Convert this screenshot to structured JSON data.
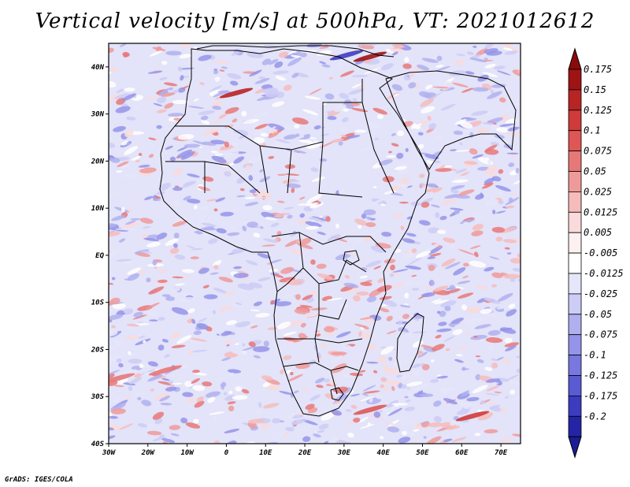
{
  "title": "Vertical velocity [m/s] at 500hPa, VT: 2021012612",
  "credit": "GrADS: IGES/COLA",
  "map": {
    "lon_range": [
      -30,
      75
    ],
    "lat_range": [
      -40,
      45
    ],
    "lon_ticks": [
      {
        "value": -30,
        "label": "30W"
      },
      {
        "value": -20,
        "label": "20W"
      },
      {
        "value": -10,
        "label": "10W"
      },
      {
        "value": 0,
        "label": "0"
      },
      {
        "value": 10,
        "label": "10E"
      },
      {
        "value": 20,
        "label": "20E"
      },
      {
        "value": 30,
        "label": "30E"
      },
      {
        "value": 40,
        "label": "40E"
      },
      {
        "value": 50,
        "label": "50E"
      },
      {
        "value": 60,
        "label": "60E"
      },
      {
        "value": 70,
        "label": "70E"
      }
    ],
    "lat_ticks": [
      {
        "value": 40,
        "label": "40N"
      },
      {
        "value": 30,
        "label": "30N"
      },
      {
        "value": 20,
        "label": "20N"
      },
      {
        "value": 10,
        "label": "10N"
      },
      {
        "value": 0,
        "label": "EQ"
      },
      {
        "value": -10,
        "label": "10S"
      },
      {
        "value": -20,
        "label": "20S"
      },
      {
        "value": -30,
        "label": "30S"
      },
      {
        "value": -40,
        "label": "40S"
      }
    ]
  },
  "colorbar": {
    "levels": [
      {
        "label": "0.175",
        "color": "#9e1414"
      },
      {
        "label": "0.15",
        "color": "#b82424"
      },
      {
        "label": "0.125",
        "color": "#cf3a3a"
      },
      {
        "label": "0.1",
        "color": "#de5656"
      },
      {
        "label": "0.075",
        "color": "#e77878"
      },
      {
        "label": "0.05",
        "color": "#ef9a9a"
      },
      {
        "label": "0.025",
        "color": "#f6bcbc"
      },
      {
        "label": "0.0125",
        "color": "#fadada"
      },
      {
        "label": "0.005",
        "color": "#fdf0f0"
      },
      {
        "label": "-0.005",
        "color": "#ffffff"
      },
      {
        "label": "-0.0125",
        "color": "#e6e6fb"
      },
      {
        "label": "-0.025",
        "color": "#ccccf6"
      },
      {
        "label": "-0.05",
        "color": "#b0b0f0"
      },
      {
        "label": "-0.075",
        "color": "#9494ea"
      },
      {
        "label": "-0.1",
        "color": "#7878e0"
      },
      {
        "label": "-0.125",
        "color": "#5a5ad2"
      },
      {
        "label": "-0.175",
        "color": "#3c3cc0"
      },
      {
        "label": "-0.2",
        "color": "#2424a6"
      }
    ],
    "top_color": "#8c0a0a",
    "bottom_color": "#1c1c96"
  }
}
